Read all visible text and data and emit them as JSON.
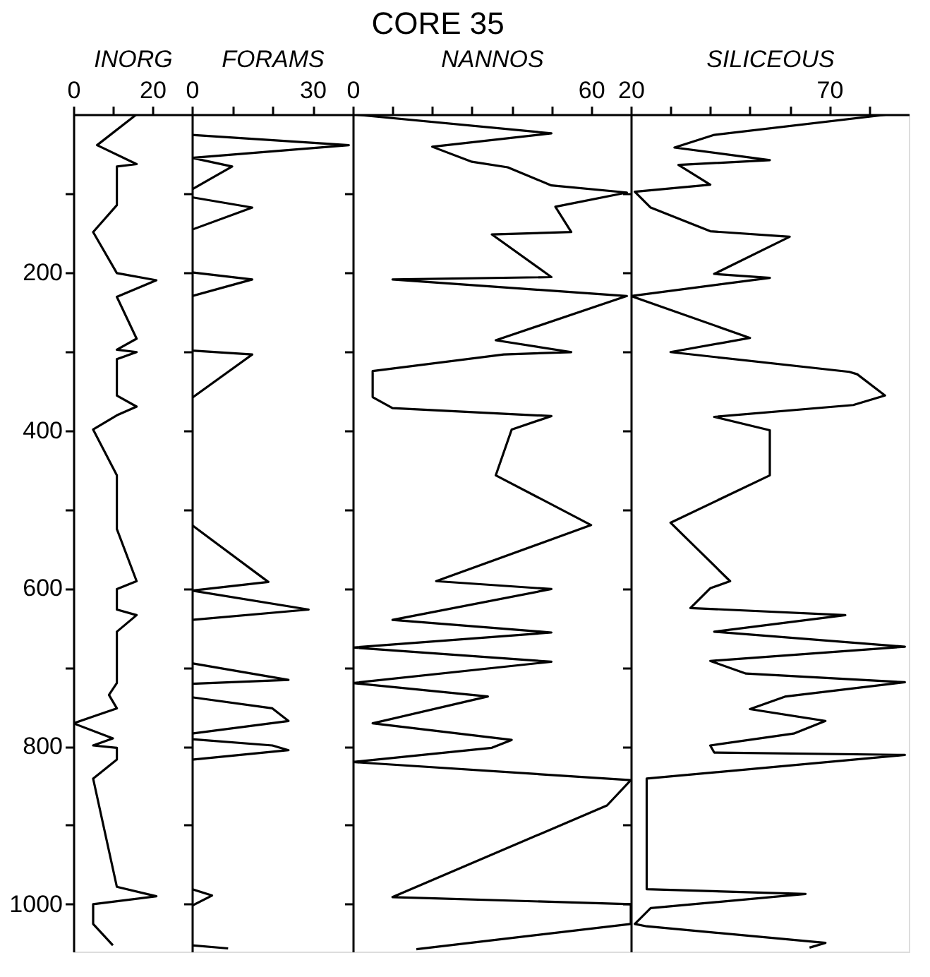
{
  "chart_data": [
    {
      "type": "line",
      "xlabel": "INORG",
      "orientation": "horizontal",
      "color": "#000000",
      "marker": "none",
      "line_style": "solid",
      "grid": false,
      "x": [
        0,
        39,
        63,
        66,
        115,
        149,
        201,
        210,
        231,
        284,
        298,
        301,
        310,
        356,
        370,
        381,
        399,
        457,
        525,
        591,
        601,
        627,
        634,
        655,
        720,
        735,
        752,
        771,
        790,
        799,
        802,
        817,
        841,
        978,
        990,
        1000,
        1025,
        1052
      ],
      "values": [
        16,
        6,
        16,
        11,
        11,
        5,
        11,
        21,
        11,
        16,
        11,
        16,
        11,
        11,
        16,
        11,
        5,
        11,
        11,
        16,
        11,
        11,
        16,
        11,
        11,
        9,
        11,
        0,
        10,
        5,
        11,
        11,
        5,
        11,
        21,
        5,
        5,
        10
      ],
      "xlim": [
        0,
        30
      ],
      "xticks": [
        0,
        {
          "value": 10,
          "label": null
        },
        20
      ],
      "ylim": [
        1060,
        0
      ],
      "yticks": [
        {
          "value": 100,
          "label": null
        },
        200,
        {
          "value": 300,
          "label": null
        },
        400,
        {
          "value": 500,
          "label": null
        },
        600,
        {
          "value": 700,
          "label": null
        },
        800,
        {
          "value": 900,
          "label": null
        },
        1000
      ]
    },
    {
      "type": "line",
      "xlabel": "FORAMS",
      "orientation": "horizontal",
      "color": "#000000",
      "marker": "none",
      "line_style": "solid",
      "grid": false,
      "tick_labels": "x",
      "x": [
        26,
        39,
        55,
        66,
        95,
        105,
        118,
        146,
        200,
        209,
        230,
        299,
        304,
        359,
        520,
        592,
        603,
        627,
        640,
        695,
        716,
        721,
        738,
        752,
        768,
        784,
        791,
        799,
        805,
        817,
        981,
        989,
        1002,
        1052,
        1056
      ],
      "values": [
        0,
        39,
        0,
        10,
        0,
        0,
        15,
        0,
        0,
        15,
        0,
        0,
        15,
        0,
        0,
        19,
        0,
        29,
        0,
        0,
        24,
        0,
        0,
        20,
        24,
        0,
        0,
        20,
        24,
        0,
        0,
        5,
        0,
        0,
        9
      ],
      "xlim": [
        0,
        40
      ],
      "xticks": [
        0,
        {
          "value": 10,
          "label": null
        },
        {
          "value": 20,
          "label": null
        },
        30
      ],
      "ylim": [
        1060,
        0
      ],
      "yticks": [
        {
          "value": 100,
          "label": null
        },
        {
          "value": 200,
          "label": null
        },
        {
          "value": 300,
          "label": null
        },
        {
          "value": 400,
          "label": null
        },
        {
          "value": 500,
          "label": null
        },
        {
          "value": 600,
          "label": null
        },
        {
          "value": 700,
          "label": null
        },
        {
          "value": 800,
          "label": null
        },
        {
          "value": 900,
          "label": null
        },
        {
          "value": 1000,
          "label": null
        }
      ]
    },
    {
      "type": "line",
      "title": "CORE 35",
      "xlabel": "NANNOS",
      "orientation": "horizontal",
      "color": "#000000",
      "marker": "none",
      "line_style": "solid",
      "grid": false,
      "tick_labels": "x",
      "x": [
        0,
        24,
        41,
        60,
        67,
        90,
        99,
        117,
        149,
        152,
        206,
        209,
        230,
        286,
        301,
        304,
        325,
        358,
        372,
        382,
        399,
        457,
        520,
        591,
        601,
        640,
        656,
        675,
        693,
        720,
        737,
        771,
        792,
        802,
        820,
        843,
        875,
        991,
        1000,
        1025,
        1057
      ],
      "values": [
        0,
        50,
        20,
        30,
        39,
        50,
        69,
        51,
        55,
        35,
        50,
        10,
        69,
        36,
        55,
        38,
        5,
        5,
        10,
        50,
        40,
        36,
        60,
        21,
        50,
        10,
        50,
        0,
        50,
        0,
        34,
        5,
        40,
        35,
        0,
        70,
        64,
        10,
        70,
        70,
        16
      ],
      "xlim": [
        0,
        70
      ],
      "xticks": [
        0,
        {
          "value": 10,
          "label": null
        },
        {
          "value": 20,
          "label": null
        },
        {
          "value": 30,
          "label": null
        },
        {
          "value": 40,
          "label": null
        },
        {
          "value": 50,
          "label": null
        },
        60
      ],
      "ylim": [
        1060,
        0
      ],
      "yticks": [
        {
          "value": 100,
          "label": null
        },
        {
          "value": 200,
          "label": null
        },
        {
          "value": 300,
          "label": null
        },
        {
          "value": 400,
          "label": null
        },
        {
          "value": 500,
          "label": null
        },
        {
          "value": 600,
          "label": null
        },
        {
          "value": 700,
          "label": null
        },
        {
          "value": 800,
          "label": null
        },
        {
          "value": 900,
          "label": null
        },
        {
          "value": 1000,
          "label": null
        }
      ]
    },
    {
      "type": "line",
      "xlabel": "SILICEOUS",
      "orientation": "horizontal",
      "color": "#000000",
      "marker": "none",
      "line_style": "solid",
      "grid": false,
      "tick_labels": "x",
      "x": [
        0,
        26,
        42,
        58,
        64,
        89,
        98,
        118,
        148,
        155,
        202,
        207,
        230,
        283,
        301,
        326,
        329,
        356,
        368,
        383,
        400,
        457,
        517,
        591,
        600,
        625,
        634,
        655,
        674,
        692,
        708,
        719,
        737,
        753,
        768,
        784,
        799,
        808,
        811,
        841,
        981,
        987,
        1005,
        1025,
        1028,
        1049,
        1055
      ],
      "values": [
        85,
        41,
        31,
        55,
        32,
        40,
        21,
        25,
        40,
        60,
        41,
        55,
        20,
        50,
        30,
        75,
        77,
        84,
        76,
        41,
        55,
        55,
        30,
        45,
        40,
        35,
        74,
        41,
        89,
        40,
        49,
        89,
        59,
        50,
        69,
        61,
        40,
        41,
        89,
        24,
        24,
        64,
        25,
        21,
        24,
        69,
        65
      ],
      "xlim": [
        20,
        90
      ],
      "xticks": [
        20,
        {
          "value": 30,
          "label": null
        },
        {
          "value": 40,
          "label": null
        },
        {
          "value": 50,
          "label": null
        },
        {
          "value": 60,
          "label": null
        },
        70,
        {
          "value": 80,
          "label": null
        }
      ],
      "ylim": [
        1060,
        0
      ],
      "yticks": [
        {
          "value": 100,
          "label": null
        },
        {
          "value": 200,
          "label": null
        },
        {
          "value": 300,
          "label": null
        },
        {
          "value": 400,
          "label": null
        },
        {
          "value": 500,
          "label": null
        },
        {
          "value": 600,
          "label": null
        },
        {
          "value": 700,
          "label": null
        },
        {
          "value": 800,
          "label": null
        },
        {
          "value": 900,
          "label": null
        },
        {
          "value": 1000,
          "label": null
        }
      ]
    }
  ]
}
